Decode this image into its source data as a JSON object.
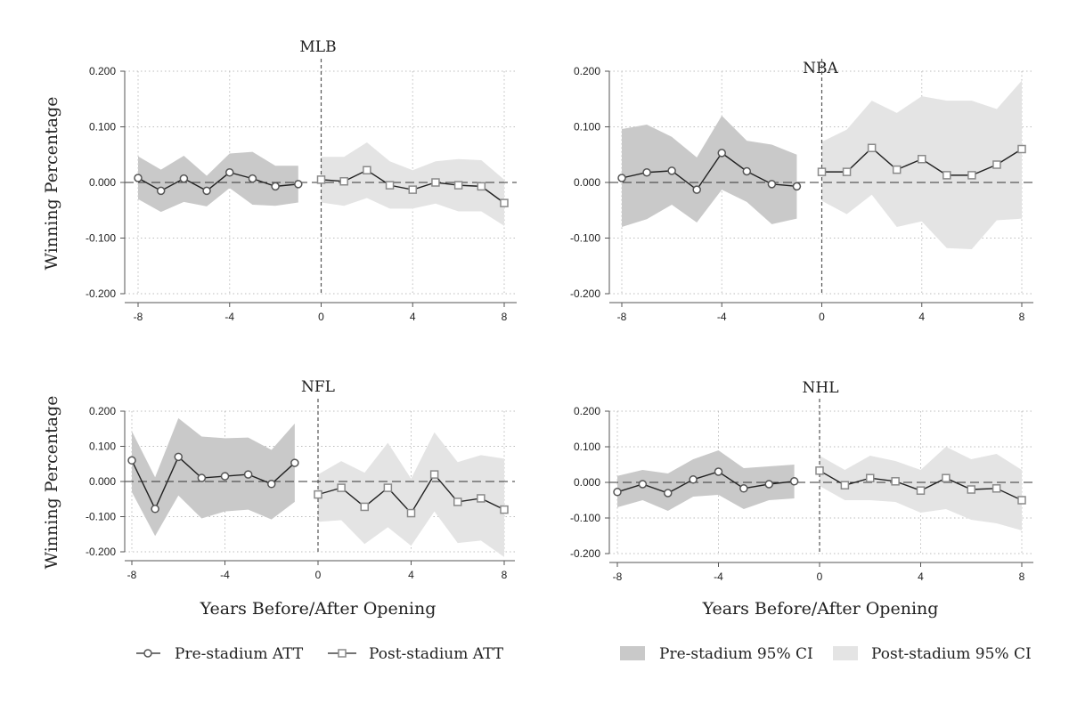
{
  "figure": {
    "x_title": "Years Before/After Opening",
    "y_title": "Winning Percentage",
    "colors": {
      "pre_ci": "#c9c9c9",
      "post_ci": "#e4e4e4",
      "pre_line": "#222222",
      "post_line": "#222222",
      "pre_marker": "#555555",
      "post_marker": "#8a8a8a",
      "grid": "#bdbdbd",
      "axis": "#555555"
    }
  },
  "legend": {
    "pre_att": "Pre-stadium ATT",
    "post_att": "Post-stadium ATT",
    "pre_ci": "Pre-stadium 95% CI",
    "post_ci": "Post-stadium 95% CI"
  },
  "chart_data": [
    {
      "type": "line",
      "title": "MLB",
      "xlabel": "",
      "ylabel": "Winning Percentage",
      "xlim": [
        -8,
        8
      ],
      "ylim": [
        -0.2,
        0.2
      ],
      "xticks": [
        "-8",
        "-4",
        "0",
        "4",
        "8"
      ],
      "yticks": [
        "0.200",
        "0.100",
        "0.000",
        "-0.100",
        "-0.200"
      ],
      "series": [
        {
          "name": "Pre-stadium ATT",
          "x": [
            -8,
            -7,
            -6,
            -5,
            -4,
            -3,
            -2,
            -1
          ],
          "values": [
            0.008,
            -0.015,
            0.007,
            -0.015,
            0.018,
            0.007,
            -0.007,
            -0.003
          ],
          "ci_lower": [
            -0.03,
            -0.053,
            -0.035,
            -0.043,
            -0.01,
            -0.04,
            -0.042,
            -0.036
          ],
          "ci_upper": [
            0.047,
            0.023,
            0.048,
            0.012,
            0.052,
            0.055,
            0.03,
            0.03
          ]
        },
        {
          "name": "Post-stadium ATT",
          "x": [
            0,
            1,
            2,
            3,
            4,
            5,
            6,
            7,
            8
          ],
          "values": [
            0.005,
            0.002,
            0.022,
            -0.005,
            -0.013,
            0.0,
            -0.005,
            -0.007,
            -0.037
          ],
          "ci_lower": [
            -0.036,
            -0.042,
            -0.028,
            -0.047,
            -0.047,
            -0.038,
            -0.052,
            -0.052,
            -0.078
          ],
          "ci_upper": [
            0.046,
            0.046,
            0.072,
            0.038,
            0.022,
            0.038,
            0.042,
            0.04,
            0.005
          ]
        }
      ]
    },
    {
      "type": "line",
      "title": "NBA",
      "xlabel": "",
      "ylabel": "",
      "xlim": [
        -8,
        8
      ],
      "ylim": [
        -0.2,
        0.2
      ],
      "xticks": [
        "-8",
        "-4",
        "0",
        "4",
        "8"
      ],
      "yticks": [
        "0.200",
        "0.100",
        "0.000",
        "-0.100",
        "-0.200"
      ],
      "series": [
        {
          "name": "Pre-stadium ATT",
          "x": [
            -8,
            -7,
            -6,
            -5,
            -4,
            -3,
            -2,
            -1
          ],
          "values": [
            0.008,
            0.018,
            0.021,
            -0.013,
            0.053,
            0.02,
            -0.003,
            -0.007
          ],
          "ci_lower": [
            -0.08,
            -0.066,
            -0.04,
            -0.072,
            -0.013,
            -0.035,
            -0.075,
            -0.065
          ],
          "ci_upper": [
            0.096,
            0.104,
            0.082,
            0.045,
            0.12,
            0.075,
            0.068,
            0.05
          ]
        },
        {
          "name": "Post-stadium ATT",
          "x": [
            0,
            1,
            2,
            3,
            4,
            5,
            6,
            7,
            8
          ],
          "values": [
            0.019,
            0.019,
            0.062,
            0.023,
            0.042,
            0.013,
            0.013,
            0.032,
            0.06
          ],
          "ci_lower": [
            -0.033,
            -0.057,
            -0.022,
            -0.08,
            -0.07,
            -0.118,
            -0.12,
            -0.068,
            -0.065
          ],
          "ci_upper": [
            0.073,
            0.095,
            0.147,
            0.125,
            0.155,
            0.147,
            0.147,
            0.132,
            0.183
          ]
        }
      ]
    },
    {
      "type": "line",
      "title": "NFL",
      "xlabel": "Years Before/After Opening",
      "ylabel": "Winning Percentage",
      "xlim": [
        -8,
        8
      ],
      "ylim": [
        -0.2,
        0.2
      ],
      "xticks": [
        "-8",
        "-4",
        "0",
        "4",
        "8"
      ],
      "yticks": [
        "0.200",
        "0.100",
        "0.000",
        "-0.100",
        "-0.200"
      ],
      "series": [
        {
          "name": "Pre-stadium ATT",
          "x": [
            -8,
            -7,
            -6,
            -5,
            -4,
            -3,
            -2,
            -1
          ],
          "values": [
            0.06,
            -0.078,
            0.07,
            0.01,
            0.015,
            0.02,
            -0.007,
            0.053
          ],
          "ci_lower": [
            -0.03,
            -0.155,
            -0.04,
            -0.105,
            -0.085,
            -0.08,
            -0.108,
            -0.058
          ],
          "ci_upper": [
            0.143,
            0.012,
            0.18,
            0.128,
            0.123,
            0.125,
            0.09,
            0.165
          ]
        },
        {
          "name": "Post-stadium ATT",
          "x": [
            0,
            1,
            2,
            3,
            4,
            5,
            6,
            7,
            8
          ],
          "values": [
            -0.037,
            -0.018,
            -0.072,
            -0.018,
            -0.09,
            0.02,
            -0.058,
            -0.048,
            -0.08
          ],
          "ci_lower": [
            -0.115,
            -0.11,
            -0.178,
            -0.13,
            -0.183,
            -0.085,
            -0.175,
            -0.168,
            -0.215
          ],
          "ci_upper": [
            0.02,
            0.058,
            0.025,
            0.11,
            0.008,
            0.14,
            0.055,
            0.075,
            0.065
          ]
        }
      ]
    },
    {
      "type": "line",
      "title": "NHL",
      "xlabel": "Years Before/After Opening",
      "ylabel": "",
      "xlim": [
        -8,
        8
      ],
      "ylim": [
        -0.2,
        0.2
      ],
      "xticks": [
        "-8",
        "-4",
        "0",
        "4",
        "8"
      ],
      "yticks": [
        "0.200",
        "0.100",
        "0.000",
        "-0.100",
        "-0.200"
      ],
      "series": [
        {
          "name": "Pre-stadium ATT",
          "x": [
            -8,
            -7,
            -6,
            -5,
            -4,
            -3,
            -2,
            -1
          ],
          "values": [
            -0.027,
            -0.005,
            -0.03,
            0.008,
            0.03,
            -0.017,
            -0.005,
            0.003
          ],
          "ci_lower": [
            -0.07,
            -0.05,
            -0.08,
            -0.04,
            -0.035,
            -0.075,
            -0.05,
            -0.045
          ],
          "ci_upper": [
            0.018,
            0.035,
            0.025,
            0.065,
            0.09,
            0.04,
            0.045,
            0.05
          ]
        },
        {
          "name": "Post-stadium ATT",
          "x": [
            0,
            1,
            2,
            3,
            4,
            5,
            6,
            7,
            8
          ],
          "values": [
            0.033,
            -0.008,
            0.012,
            0.003,
            -0.023,
            0.012,
            -0.02,
            -0.017,
            -0.05
          ],
          "ci_lower": [
            -0.01,
            -0.05,
            -0.05,
            -0.055,
            -0.085,
            -0.075,
            -0.105,
            -0.115,
            -0.135
          ],
          "ci_upper": [
            0.075,
            0.035,
            0.075,
            0.06,
            0.035,
            0.1,
            0.065,
            0.08,
            0.035
          ]
        }
      ]
    }
  ]
}
